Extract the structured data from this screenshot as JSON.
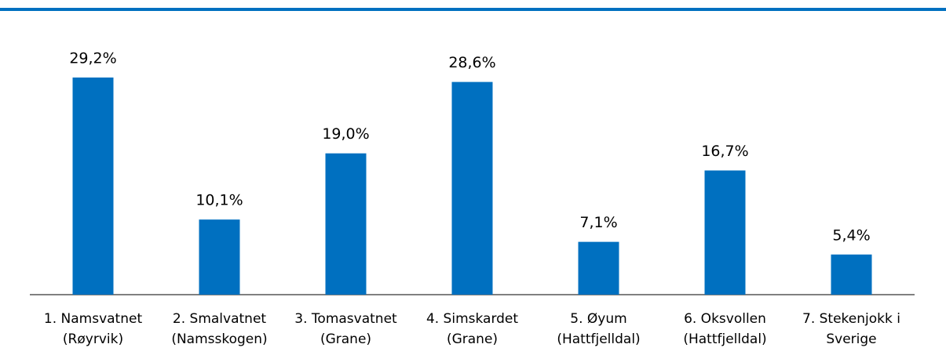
{
  "chart_data": {
    "type": "bar",
    "categories": [
      [
        "1. Namsvatnet",
        "(Røyrvik)"
      ],
      [
        "2. Smalvatnet",
        "(Namsskogen)"
      ],
      [
        "3. Tomasvatnet",
        "(Grane)"
      ],
      [
        "4. Simskardet",
        "(Grane)"
      ],
      [
        "5. Øyum",
        "(Hattfjelldal)"
      ],
      [
        "6. Oksvollen",
        "(Hattfjelldal)"
      ],
      [
        "7. Stekenjokk i",
        "Sverige"
      ]
    ],
    "values": [
      29.2,
      10.1,
      19.0,
      28.6,
      7.1,
      16.7,
      5.4
    ],
    "value_labels": [
      "29,2%",
      "10,1%",
      "19,0%",
      "28,6%",
      "7,1%",
      "16,7%",
      "5,4%"
    ],
    "color": "#0070c0"
  }
}
